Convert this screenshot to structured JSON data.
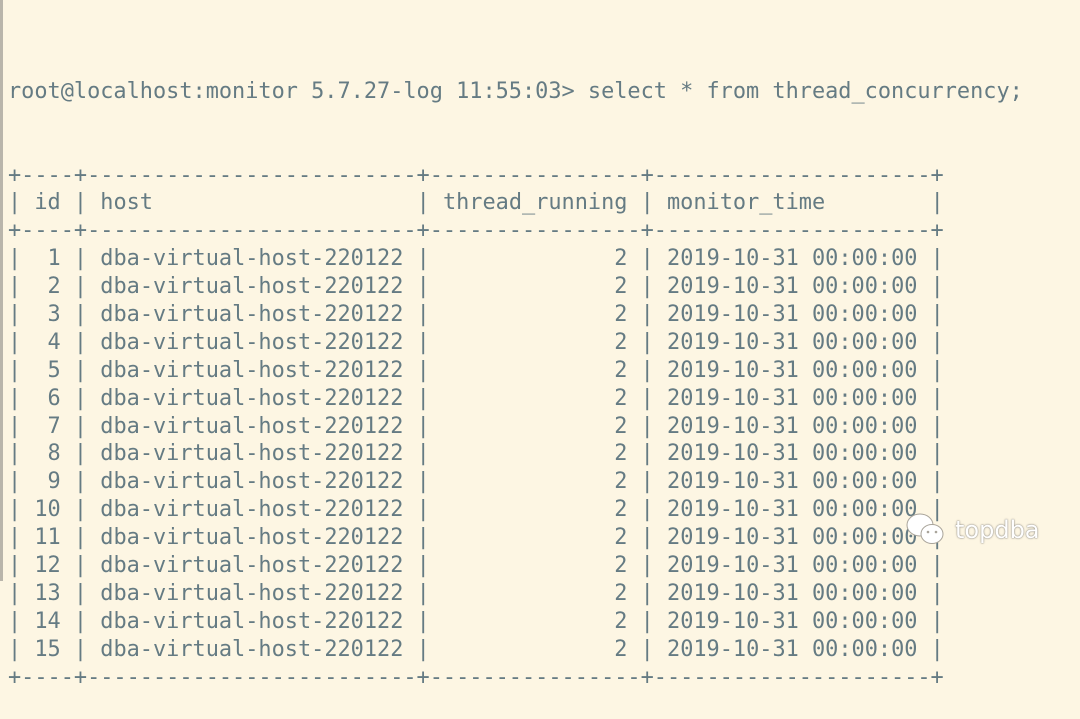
{
  "prompt": "root@localhost:monitor 5.7.27-log 11:55:03> ",
  "command": "select * from thread_concurrency;",
  "table": {
    "columns": [
      "id",
      "host",
      "thread_running",
      "monitor_time"
    ],
    "rows": [
      [
        "1",
        "dba-virtual-host-220122",
        "2",
        "2019-10-31 00:00:00"
      ],
      [
        "2",
        "dba-virtual-host-220122",
        "2",
        "2019-10-31 00:00:00"
      ],
      [
        "3",
        "dba-virtual-host-220122",
        "2",
        "2019-10-31 00:00:00"
      ],
      [
        "4",
        "dba-virtual-host-220122",
        "2",
        "2019-10-31 00:00:00"
      ],
      [
        "5",
        "dba-virtual-host-220122",
        "2",
        "2019-10-31 00:00:00"
      ],
      [
        "6",
        "dba-virtual-host-220122",
        "2",
        "2019-10-31 00:00:00"
      ],
      [
        "7",
        "dba-virtual-host-220122",
        "2",
        "2019-10-31 00:00:00"
      ],
      [
        "8",
        "dba-virtual-host-220122",
        "2",
        "2019-10-31 00:00:00"
      ],
      [
        "9",
        "dba-virtual-host-220122",
        "2",
        "2019-10-31 00:00:00"
      ],
      [
        "10",
        "dba-virtual-host-220122",
        "2",
        "2019-10-31 00:00:00"
      ],
      [
        "11",
        "dba-virtual-host-220122",
        "2",
        "2019-10-31 00:00:00"
      ],
      [
        "12",
        "dba-virtual-host-220122",
        "2",
        "2019-10-31 00:00:00"
      ],
      [
        "13",
        "dba-virtual-host-220122",
        "2",
        "2019-10-31 00:00:00"
      ],
      [
        "14",
        "dba-virtual-host-220122",
        "2",
        "2019-10-31 00:00:00"
      ],
      [
        "15",
        "dba-virtual-host-220122",
        "2",
        "2019-10-31 00:00:00"
      ]
    ]
  },
  "watermark": {
    "text": "topdba",
    "icon": "wechat-icon"
  },
  "colors": {
    "background": "#fdf6e3",
    "text": "#657b83"
  }
}
